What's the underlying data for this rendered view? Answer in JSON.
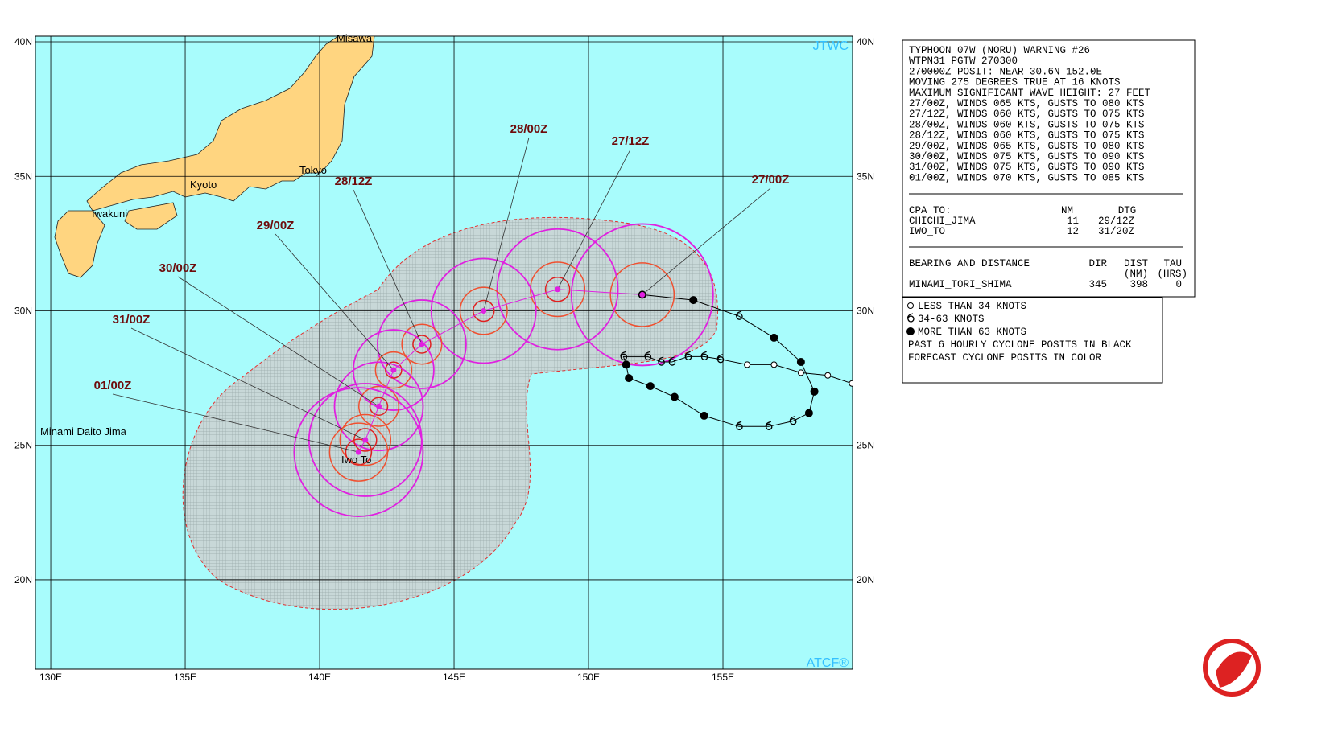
{
  "map": {
    "lon_range": [
      129.43,
      159.82
    ],
    "lat_range": [
      16.68,
      40.21
    ],
    "lat_ticks": [
      {
        "value": 40,
        "label": "40N"
      },
      {
        "value": 35,
        "label": "35N"
      },
      {
        "value": 30,
        "label": "30N"
      },
      {
        "value": 25,
        "label": "25N"
      },
      {
        "value": 20,
        "label": "20N"
      }
    ],
    "lon_ticks": [
      {
        "value": 130,
        "label": "130E"
      },
      {
        "value": 135,
        "label": "135E"
      },
      {
        "value": 140,
        "label": "140E"
      },
      {
        "value": 145,
        "label": "145E"
      },
      {
        "value": 150,
        "label": "150E"
      },
      {
        "value": 155,
        "label": "155E"
      }
    ],
    "places": [
      "Misawa",
      "Tokyo",
      "Kyoto",
      "Iwakuni",
      "Minami Daito Jima",
      "Iwo To"
    ],
    "source_top": "JTWC",
    "source_bottom": "ATCF®",
    "forecast": [
      {
        "label": "27/00Z",
        "lon": 152.0,
        "lat": 30.6
      },
      {
        "label": "27/12Z",
        "lon": 148.85,
        "lat": 30.8
      },
      {
        "label": "28/00Z",
        "lon": 146.1,
        "lat": 30.0
      },
      {
        "label": "28/12Z",
        "lon": 143.8,
        "lat": 28.76
      },
      {
        "label": "29/00Z",
        "lon": 142.75,
        "lat": 27.8
      },
      {
        "label": "30/00Z",
        "lon": 142.2,
        "lat": 26.45
      },
      {
        "label": "31/00Z",
        "lon": 141.7,
        "lat": 25.2
      },
      {
        "label": "01/00Z",
        "lon": 141.45,
        "lat": 24.75
      }
    ],
    "past_track": [
      {
        "lon": 159.8,
        "lat": 27.3,
        "cat": 0
      },
      {
        "lon": 158.9,
        "lat": 27.6,
        "cat": 0
      },
      {
        "lon": 157.9,
        "lat": 27.7,
        "cat": 0
      },
      {
        "lon": 156.9,
        "lat": 28.0,
        "cat": 0
      },
      {
        "lon": 155.9,
        "lat": 28.0,
        "cat": 0
      },
      {
        "lon": 154.9,
        "lat": 28.2,
        "cat": 1
      },
      {
        "lon": 154.3,
        "lat": 28.3,
        "cat": 1
      },
      {
        "lon": 153.7,
        "lat": 28.3,
        "cat": 1
      },
      {
        "lon": 153.1,
        "lat": 28.1,
        "cat": 1
      },
      {
        "lon": 152.7,
        "lat": 28.1,
        "cat": 1
      },
      {
        "lon": 152.2,
        "lat": 28.3,
        "cat": 1
      },
      {
        "lon": 151.3,
        "lat": 28.3,
        "cat": 1
      },
      {
        "lon": 151.4,
        "lat": 28.0,
        "cat": 2
      },
      {
        "lon": 151.5,
        "lat": 27.5,
        "cat": 2
      },
      {
        "lon": 152.3,
        "lat": 27.2,
        "cat": 2
      },
      {
        "lon": 153.2,
        "lat": 26.8,
        "cat": 2
      },
      {
        "lon": 154.3,
        "lat": 26.1,
        "cat": 2
      },
      {
        "lon": 155.6,
        "lat": 25.7,
        "cat": 1
      },
      {
        "lon": 156.7,
        "lat": 25.7,
        "cat": 1
      },
      {
        "lon": 157.6,
        "lat": 25.9,
        "cat": 1
      },
      {
        "lon": 158.2,
        "lat": 26.2,
        "cat": 2
      },
      {
        "lon": 158.4,
        "lat": 27.0,
        "cat": 2
      },
      {
        "lon": 157.9,
        "lat": 28.1,
        "cat": 2
      },
      {
        "lon": 156.9,
        "lat": 29.0,
        "cat": 2
      },
      {
        "lon": 155.6,
        "lat": 29.8,
        "cat": 1
      },
      {
        "lon": 153.9,
        "lat": 30.4,
        "cat": 2
      },
      {
        "lon": 152.0,
        "lat": 30.6,
        "cat": 2
      }
    ]
  },
  "info": {
    "lines": [
      "TYPHOON 07W (NORU) WARNING #26",
      "WTPN31 PGTW 270300",
      "270000Z POSIT: NEAR 30.6N 152.0E",
      "MOVING 275 DEGREES TRUE AT 16 KNOTS",
      "MAXIMUM SIGNIFICANT WAVE HEIGHT: 27 FEET",
      "27/00Z, WINDS 065 KTS, GUSTS TO 080 KTS",
      "27/12Z, WINDS 060 KTS, GUSTS TO 075 KTS",
      "28/00Z, WINDS 060 KTS, GUSTS TO 075 KTS",
      "28/12Z, WINDS 060 KTS, GUSTS TO 075 KTS",
      "29/00Z, WINDS 065 KTS, GUSTS TO 080 KTS",
      "30/00Z, WINDS 075 KTS, GUSTS TO 090 KTS",
      "31/00Z, WINDS 075 KTS, GUSTS TO 090 KTS",
      "01/00Z, WINDS 070 KTS, GUSTS TO 085 KTS"
    ],
    "cpa_header": [
      "CPA TO:",
      "NM",
      "DTG"
    ],
    "cpa_rows": [
      [
        "CHICHI_JIMA",
        "11",
        "29/12Z"
      ],
      [
        "IWO_TO",
        "12",
        "31/20Z"
      ]
    ],
    "bearing_header": [
      "BEARING AND DISTANCE",
      "DIR",
      "DIST",
      "TAU"
    ],
    "bearing_units": [
      "(NM)",
      "(HRS)"
    ],
    "bearing_rows": [
      [
        "MINAMI_TORI_SHIMA",
        "345",
        "398",
        "0"
      ]
    ]
  },
  "legend": {
    "lines": [
      "LESS THAN 34 KNOTS",
      "34-63 KNOTS",
      "MORE THAN 63 KNOTS",
      "PAST 6 HOURLY CYCLONE POSITS IN BLACK",
      "FORECAST CYCLONE POSITS IN COLOR"
    ]
  }
}
